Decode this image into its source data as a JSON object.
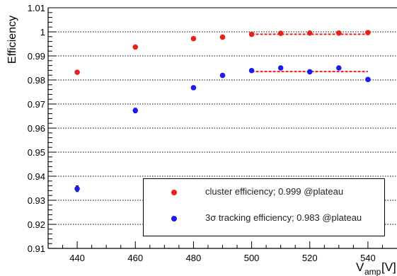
{
  "chart_data": {
    "type": "scatter",
    "xlabel": "V",
    "xlabel_sub": "amp",
    "xlabel_unit": "[V]",
    "ylabel": "Efficiency",
    "xlim": [
      430,
      550
    ],
    "ylim": [
      0.91,
      1.01
    ],
    "x_ticks": [
      440,
      460,
      480,
      500,
      520,
      540
    ],
    "y_ticks": [
      0.91,
      0.92,
      0.93,
      0.94,
      0.95,
      0.96,
      0.97,
      0.98,
      0.99,
      1,
      1.01
    ],
    "grid": "horizontal dotted",
    "series": [
      {
        "name": "cluster efficiency; 0.999 @plateau",
        "color": "#e8211b",
        "x": [
          440,
          460,
          480,
          490,
          500,
          510,
          520,
          530,
          540
        ],
        "y": [
          0.9832,
          0.9937,
          0.9972,
          0.9978,
          0.999,
          0.9994,
          0.9995,
          0.9995,
          0.9997
        ],
        "err": [
          0.0004,
          0.0004,
          0.0003,
          0.0003,
          0.0003,
          0.0003,
          0.0003,
          0.0003,
          0.0003
        ]
      },
      {
        "name": "3σ tracking efficiency; 0.983 @plateau",
        "color": "#1c1cf0",
        "x": [
          440,
          460,
          480,
          490,
          500,
          510,
          520,
          530,
          540
        ],
        "y": [
          0.9348,
          0.9673,
          0.9768,
          0.9819,
          0.9839,
          0.985,
          0.9834,
          0.985,
          0.9802
        ],
        "err": [
          0.0012,
          0.001,
          0.0005,
          0.0005,
          0.0004,
          0.0004,
          0.0004,
          0.0004,
          0.0004
        ]
      }
    ],
    "plateau_fits": [
      {
        "color": "#e8211b",
        "x": [
          500,
          540
        ],
        "y": 0.999
      },
      {
        "color": "#e8211b",
        "x": [
          500,
          540
        ],
        "y": 0.9835
      }
    ]
  }
}
